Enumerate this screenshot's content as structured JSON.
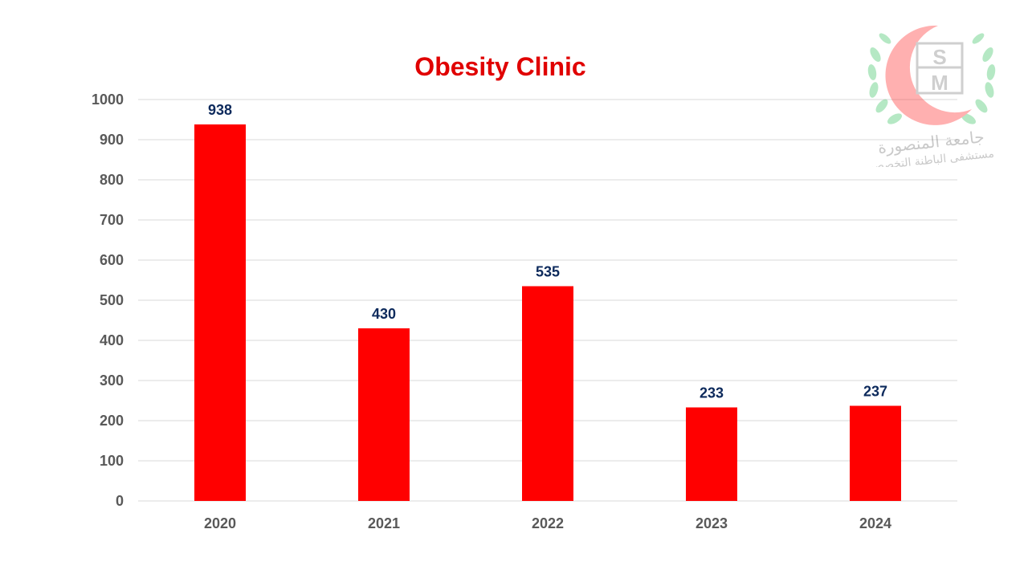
{
  "chart_data": {
    "type": "bar",
    "title": "Obesity Clinic",
    "categories": [
      "2020",
      "2021",
      "2022",
      "2023",
      "2024"
    ],
    "values": [
      938,
      430,
      535,
      233,
      237
    ],
    "ylim": [
      0,
      1000
    ],
    "yticks": [
      0,
      100,
      200,
      300,
      400,
      500,
      600,
      700,
      800,
      900,
      1000
    ],
    "grid": true,
    "data_labels": true,
    "colors": {
      "bar": "#ff0000",
      "title": "#e00000",
      "data_label": "#0d2a5c",
      "grid": "#d9d9d9"
    }
  },
  "logo": {
    "monogram_top": "S",
    "monogram_bottom": "M",
    "arabic_line1": "جامعة المنصورة",
    "arabic_line2": "مستشفى الباطنة التخصصي"
  }
}
